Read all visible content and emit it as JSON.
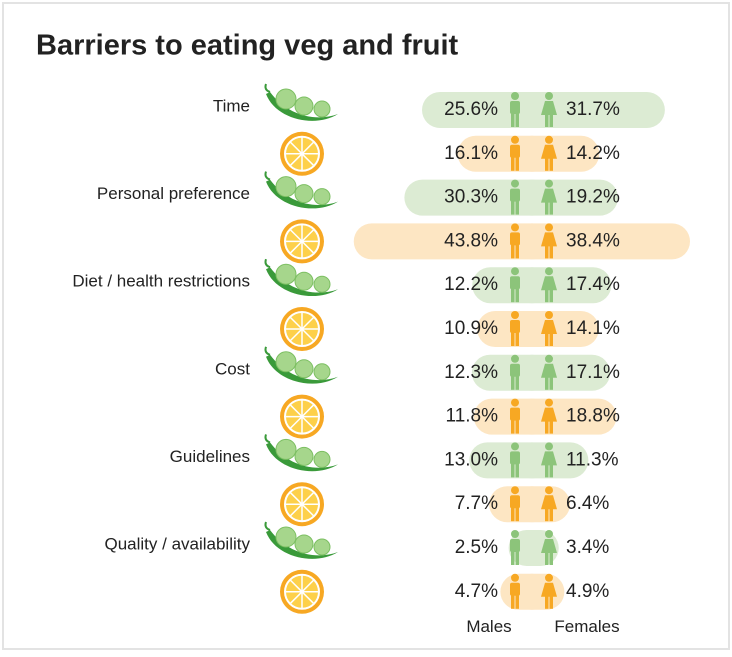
{
  "chart_data": {
    "type": "butterfly",
    "title": "Barriers to eating veg and fruit",
    "categories": [
      "Time",
      null,
      "Personal preference",
      null,
      "Diet / health restrictions",
      null,
      "Cost",
      null,
      "Guidelines",
      null,
      "Quality / availability",
      null
    ],
    "series": [
      {
        "name": "Males",
        "values": [
          25.6,
          16.1,
          30.3,
          43.8,
          12.2,
          10.9,
          12.3,
          11.8,
          13.0,
          7.7,
          2.5,
          4.7
        ],
        "value_labels": [
          "25.6%",
          "16.1%",
          "30.3%",
          "43.8%",
          "12.2%",
          "10.9%",
          "12.3%",
          "11.8%",
          "13.0%",
          "7.7%",
          "2.5%",
          "4.7%"
        ]
      },
      {
        "name": "Females",
        "values": [
          31.7,
          14.2,
          19.2,
          38.4,
          17.4,
          14.1,
          17.1,
          18.8,
          11.3,
          6.4,
          3.4,
          4.9
        ],
        "value_labels": [
          "31.7%",
          "14.2%",
          "19.2%",
          "38.4%",
          "17.4%",
          "14.1%",
          "17.1%",
          "18.8%",
          "11.3%",
          "6.4%",
          "3.4%",
          "4.9%"
        ]
      }
    ],
    "bar_colors": [
      "#dcebd3",
      "#fde6c3"
    ],
    "figure_colors": [
      "#8cc47a",
      "#f7a823"
    ],
    "title_color": "#4cb848"
  }
}
